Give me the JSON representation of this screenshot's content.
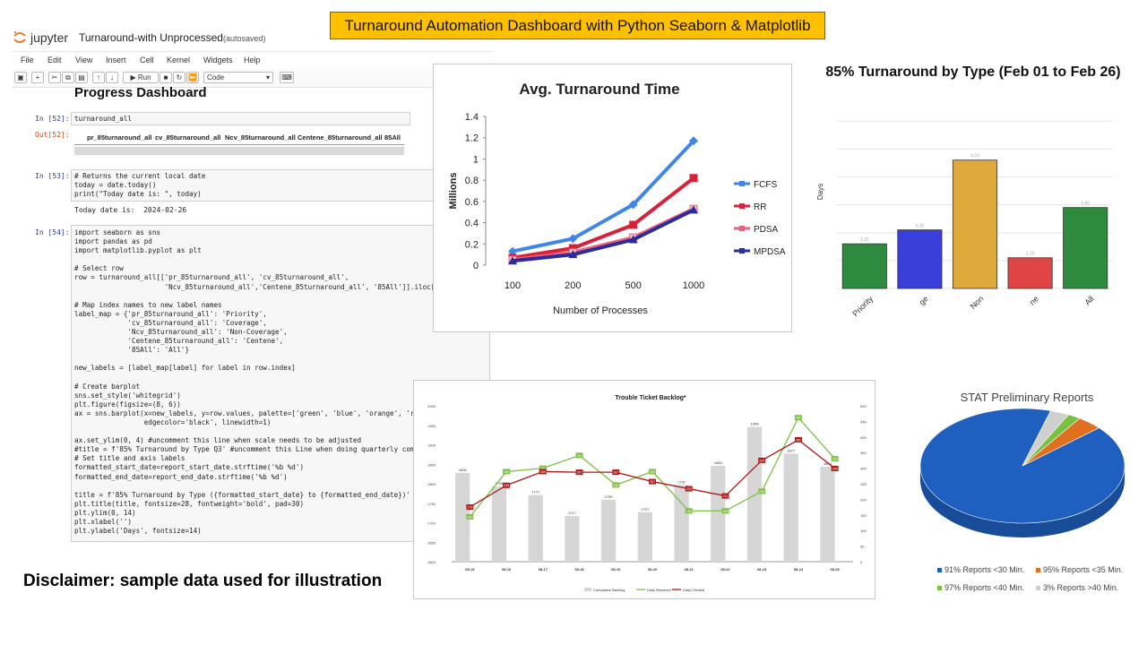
{
  "banner": "Turnaround Automation Dashboard with Python Seaborn & Matplotlib",
  "jupyter": {
    "brand": "jupyter",
    "title": "Turnaround-with Unprocessed",
    "saved": "(autosaved)",
    "menu": [
      "File",
      "Edit",
      "View",
      "Insert",
      "Cell",
      "Kernel",
      "Widgets",
      "Help"
    ],
    "toolbar": {
      "run": "Run",
      "cell_type": "Code"
    },
    "heading": "Progress Dashboard",
    "cells": [
      {
        "prompt": "In [52]:",
        "code": "turnaround_all"
      },
      {
        "prompt": "Out[52]:",
        "columns": [
          "pr_85turnaround_all",
          "cv_85turnaround_all",
          "Ncv_85turnaround_all",
          "Centene_85turnaround_all",
          "85All"
        ]
      },
      {
        "prompt": "In [53]:",
        "code": "# Returns the current local date\ntoday = date.today()\nprint(\"Today date is: \", today)",
        "output": "Today date is:  2024-02-26"
      },
      {
        "prompt": "In [54]:",
        "code": "import seaborn as sns\nimport pandas as pd\nimport matplotlib.pyplot as plt\n\n# Select row\nrow = turnaround_all[['pr_85turnaround_all', 'cv_85turnaround_all',\n                      'Ncv_85turnaround_all','Centene_85turnaround_all', '85All']].iloc[\n\n# Map index names to new label names\nlabel_map = {'pr_85turnaround_all': 'Priority',\n             'cv_85turnaround_all': 'Coverage',\n             'Ncv_85turnaround_all': 'Non-Coverage',\n             'Centene_85turnaround_all': 'Centene',\n             '85All': 'All'}\n\nnew_labels = [label_map[label] for label in row.index]\n\n# Create barplot\nsns.set_style('whitegrid')\nplt.figure(figsize=(8, 6))\nax = sns.barplot(x=new_labels, y=row.values, palette=['green', 'blue', 'orange', 're\n                 edgecolor='black', linewidth=1)\n\nax.set_ylim(0, 4) #uncomment this line when scale needs to be adjusted\n#title = f'85% Turnaround by Type Q3' #uncomment this Line when doing quarterly com\n# Set title and axis labels\nformatted_start_date=report_start_date.strftime('%b %d')\nformatted_end_date=report_end_date.strftime('%b %d')\n\ntitle = f'85% Turnaround by Type ({formatted_start_date} to {formatted_end_date})'\nplt.title(title, fontsize=28, fontweight='bold', pad=30)\nplt.ylim(0, 14)\nplt.xlabel('')\nplt.ylabel('Days', fontsize=14)"
      }
    ]
  },
  "disclaimer": "Disclaimer: sample data used for illustration",
  "chart_data": [
    {
      "type": "line",
      "title": "Avg. Turnaround Time",
      "xlabel": "Number of Processes",
      "ylabel": "Millions",
      "categories": [
        "100",
        "200",
        "500",
        "1000"
      ],
      "ylim": [
        0,
        1.4
      ],
      "yticks": [
        "0",
        "0.2",
        "0.4",
        "0.6",
        "0.8",
        "1",
        "1.2",
        "1.4"
      ],
      "legend": "right",
      "series": [
        {
          "name": "FCFS",
          "values": [
            0.13,
            0.25,
            0.57,
            1.17
          ],
          "color": "#3f86e8"
        },
        {
          "name": "RR",
          "values": [
            0.07,
            0.16,
            0.38,
            0.82
          ],
          "color": "#d8223b"
        },
        {
          "name": "PDSA",
          "values": [
            0.05,
            0.12,
            0.26,
            0.53
          ],
          "color": "#e8607a"
        },
        {
          "name": "MPDSA",
          "values": [
            0.04,
            0.1,
            0.24,
            0.52
          ],
          "color": "#2a2c9e"
        }
      ]
    },
    {
      "type": "bar",
      "title": "85% Turnaround by Type (Feb 01 to Feb 26)",
      "ylabel": "Days",
      "categories": [
        "Priority",
        "Coverage",
        "Non-Coverage",
        "Centene",
        "All"
      ],
      "tick_labels": [
        "Priority",
        "ge",
        "Non",
        "ne",
        "All"
      ],
      "values": [
        3.2,
        4.2,
        9.2,
        2.2,
        5.8
      ],
      "ylim": [
        0,
        14
      ],
      "colors": [
        "#2e8b3e",
        "#3b3fd9",
        "#e0a93c",
        "#e04545",
        "#2e8b3e"
      ]
    },
    {
      "type": "bar",
      "title": "Trouble Ticket Backlog*",
      "categories": [
        "08-15",
        "08-16",
        "08-17",
        "08-18",
        "08-19",
        "08-20",
        "08-21",
        "08-22",
        "08-23",
        "08-24",
        "08-25"
      ],
      "legend": "bottom",
      "bar_ylim": [
        1600,
        2000
      ],
      "line_ylim": [
        0,
        500
      ],
      "series": [
        {
          "name": "Cumulative Backlog",
          "values": [
            1828,
            1793,
            1771,
            1717,
            1759,
            1727,
            1797,
            1846,
            1946,
            1877,
            1844
          ],
          "color": "#d6d6d6"
        },
        {
          "name": "Daily Resolved",
          "values": [
            144,
            289,
            300,
            341,
            246,
            289,
            163,
            163,
            226,
            462,
            330
          ],
          "color": "#7dc043"
        },
        {
          "name": "Daily Created",
          "values": [
            175,
            245,
            289,
            287,
            287,
            257,
            234,
            211,
            325,
            391,
            299
          ],
          "color": "#b01818"
        }
      ]
    },
    {
      "type": "pie",
      "title": "STAT Preliminary Reports",
      "legend": "bottom",
      "labels": [
        "91% Reports <30 Min.",
        "95% Reports <35 Min.",
        "97% Reports <40 Min.",
        "3% Reports >40 Min."
      ],
      "values": [
        91,
        4,
        2,
        3
      ],
      "colors": [
        "#1f5fbf",
        "#e07020",
        "#7ac043",
        "#cfcfcf"
      ]
    }
  ]
}
